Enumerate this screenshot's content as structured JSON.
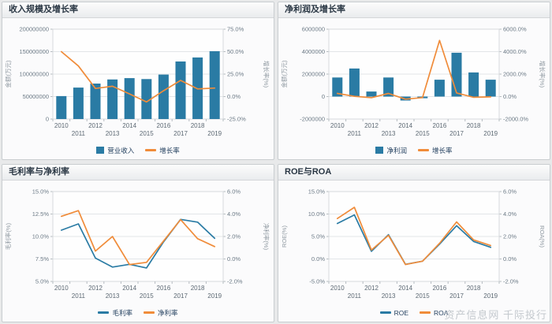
{
  "watermark": "资产信息网 千际投行",
  "categories": [
    "2010",
    "2011",
    "2012",
    "2013",
    "2014",
    "2015",
    "2016",
    "2017",
    "2018",
    "2019"
  ],
  "colors": {
    "bar_blue": "#2a7ba4",
    "line_blue": "#2a7ba4",
    "line_orange": "#f08c3a"
  },
  "chart_data": [
    {
      "type": "bar",
      "title": "收入规模及增长率",
      "left_axis": {
        "label": "金额(万元)",
        "min": 0,
        "max": 200000000,
        "tick_labels": [
          "0",
          "50000000",
          "100000000",
          "150000000",
          "200000000"
        ]
      },
      "right_axis": {
        "label": "增长率(%)",
        "min": -25,
        "max": 75,
        "tick_labels": [
          "-25.0%",
          "0.0%",
          "25.0%",
          "50.0%",
          "75.0%"
        ]
      },
      "series": [
        {
          "name": "营业收入",
          "kind": "bar",
          "axis": "left",
          "color": "#2a7ba4",
          "values": [
            51000000,
            70000000,
            79000000,
            88000000,
            91000000,
            89000000,
            99000000,
            128000000,
            137000000,
            151000000
          ]
        },
        {
          "name": "增长率",
          "kind": "line",
          "axis": "right",
          "color": "#f08c3a",
          "values": [
            50,
            34,
            9,
            11.5,
            3,
            -6,
            6.5,
            18,
            8.5,
            9.5
          ]
        }
      ]
    },
    {
      "type": "bar",
      "title": "净利润及增长率",
      "left_axis": {
        "label": "金额(万元)",
        "min": -2000000,
        "max": 6000000,
        "tick_labels": [
          "-2000000",
          "0",
          "2000000",
          "4000000",
          "6000000"
        ]
      },
      "right_axis": {
        "label": "增长率(%)",
        "min": -2000,
        "max": 6000,
        "tick_labels": [
          "-2000.0%",
          "0.0%",
          "2000.0%",
          "4000.0%",
          "6000.0%"
        ]
      },
      "series": [
        {
          "name": "净利润",
          "kind": "bar",
          "axis": "left",
          "color": "#2a7ba4",
          "values": [
            1700000,
            2500000,
            450000,
            1700000,
            -350000,
            -150000,
            1500000,
            3900000,
            2150000,
            1500000
          ]
        },
        {
          "name": "增长率",
          "kind": "line",
          "axis": "right",
          "color": "#f08c3a",
          "values": [
            280,
            20,
            -100,
            280,
            -230,
            -90,
            5000,
            320,
            -60,
            -30
          ]
        }
      ]
    },
    {
      "type": "line",
      "title": "毛利率与净利率",
      "left_axis": {
        "label": "毛利率(%)",
        "min": 5,
        "max": 15,
        "tick_labels": [
          "5.0%",
          "7.5%",
          "10.0%",
          "12.5%",
          "15.0%"
        ]
      },
      "right_axis": {
        "label": "净利率(%)",
        "min": -2,
        "max": 6,
        "tick_labels": [
          "-2.0%",
          "0.0%",
          "2.0%",
          "4.0%",
          "6.0%"
        ]
      },
      "series": [
        {
          "name": "毛利率",
          "kind": "line",
          "axis": "left",
          "color": "#2a7ba4",
          "values": [
            10.7,
            11.4,
            7.6,
            6.6,
            6.9,
            6.5,
            9.4,
            11.9,
            11.6,
            9.8
          ]
        },
        {
          "name": "净利率",
          "kind": "line",
          "axis": "right",
          "color": "#f08c3a",
          "values": [
            3.8,
            4.3,
            0.7,
            2.0,
            -0.5,
            -0.3,
            1.6,
            3.5,
            1.8,
            1.1
          ]
        }
      ]
    },
    {
      "type": "line",
      "title": "ROE与ROA",
      "left_axis": {
        "label": "ROE(%)",
        "min": -5,
        "max": 15,
        "tick_labels": [
          "-5.0%",
          "0.0%",
          "5.0%",
          "10.0%",
          "15.0%"
        ]
      },
      "right_axis": {
        "label": "ROA(%)",
        "min": -2,
        "max": 6,
        "tick_labels": [
          "-2.0%",
          "0.0%",
          "2.0%",
          "4.0%",
          "6.0%"
        ]
      },
      "series": [
        {
          "name": "ROE",
          "kind": "line",
          "axis": "left",
          "color": "#2a7ba4",
          "values": [
            7.9,
            9.8,
            1.7,
            5.4,
            -1.2,
            -0.5,
            3.3,
            7.4,
            3.9,
            2.6
          ]
        },
        {
          "name": "ROA",
          "kind": "line",
          "axis": "right",
          "color": "#f08c3a",
          "values": [
            3.6,
            4.6,
            0.8,
            2.1,
            -0.5,
            -0.2,
            1.4,
            3.3,
            1.7,
            1.2
          ]
        }
      ]
    }
  ]
}
